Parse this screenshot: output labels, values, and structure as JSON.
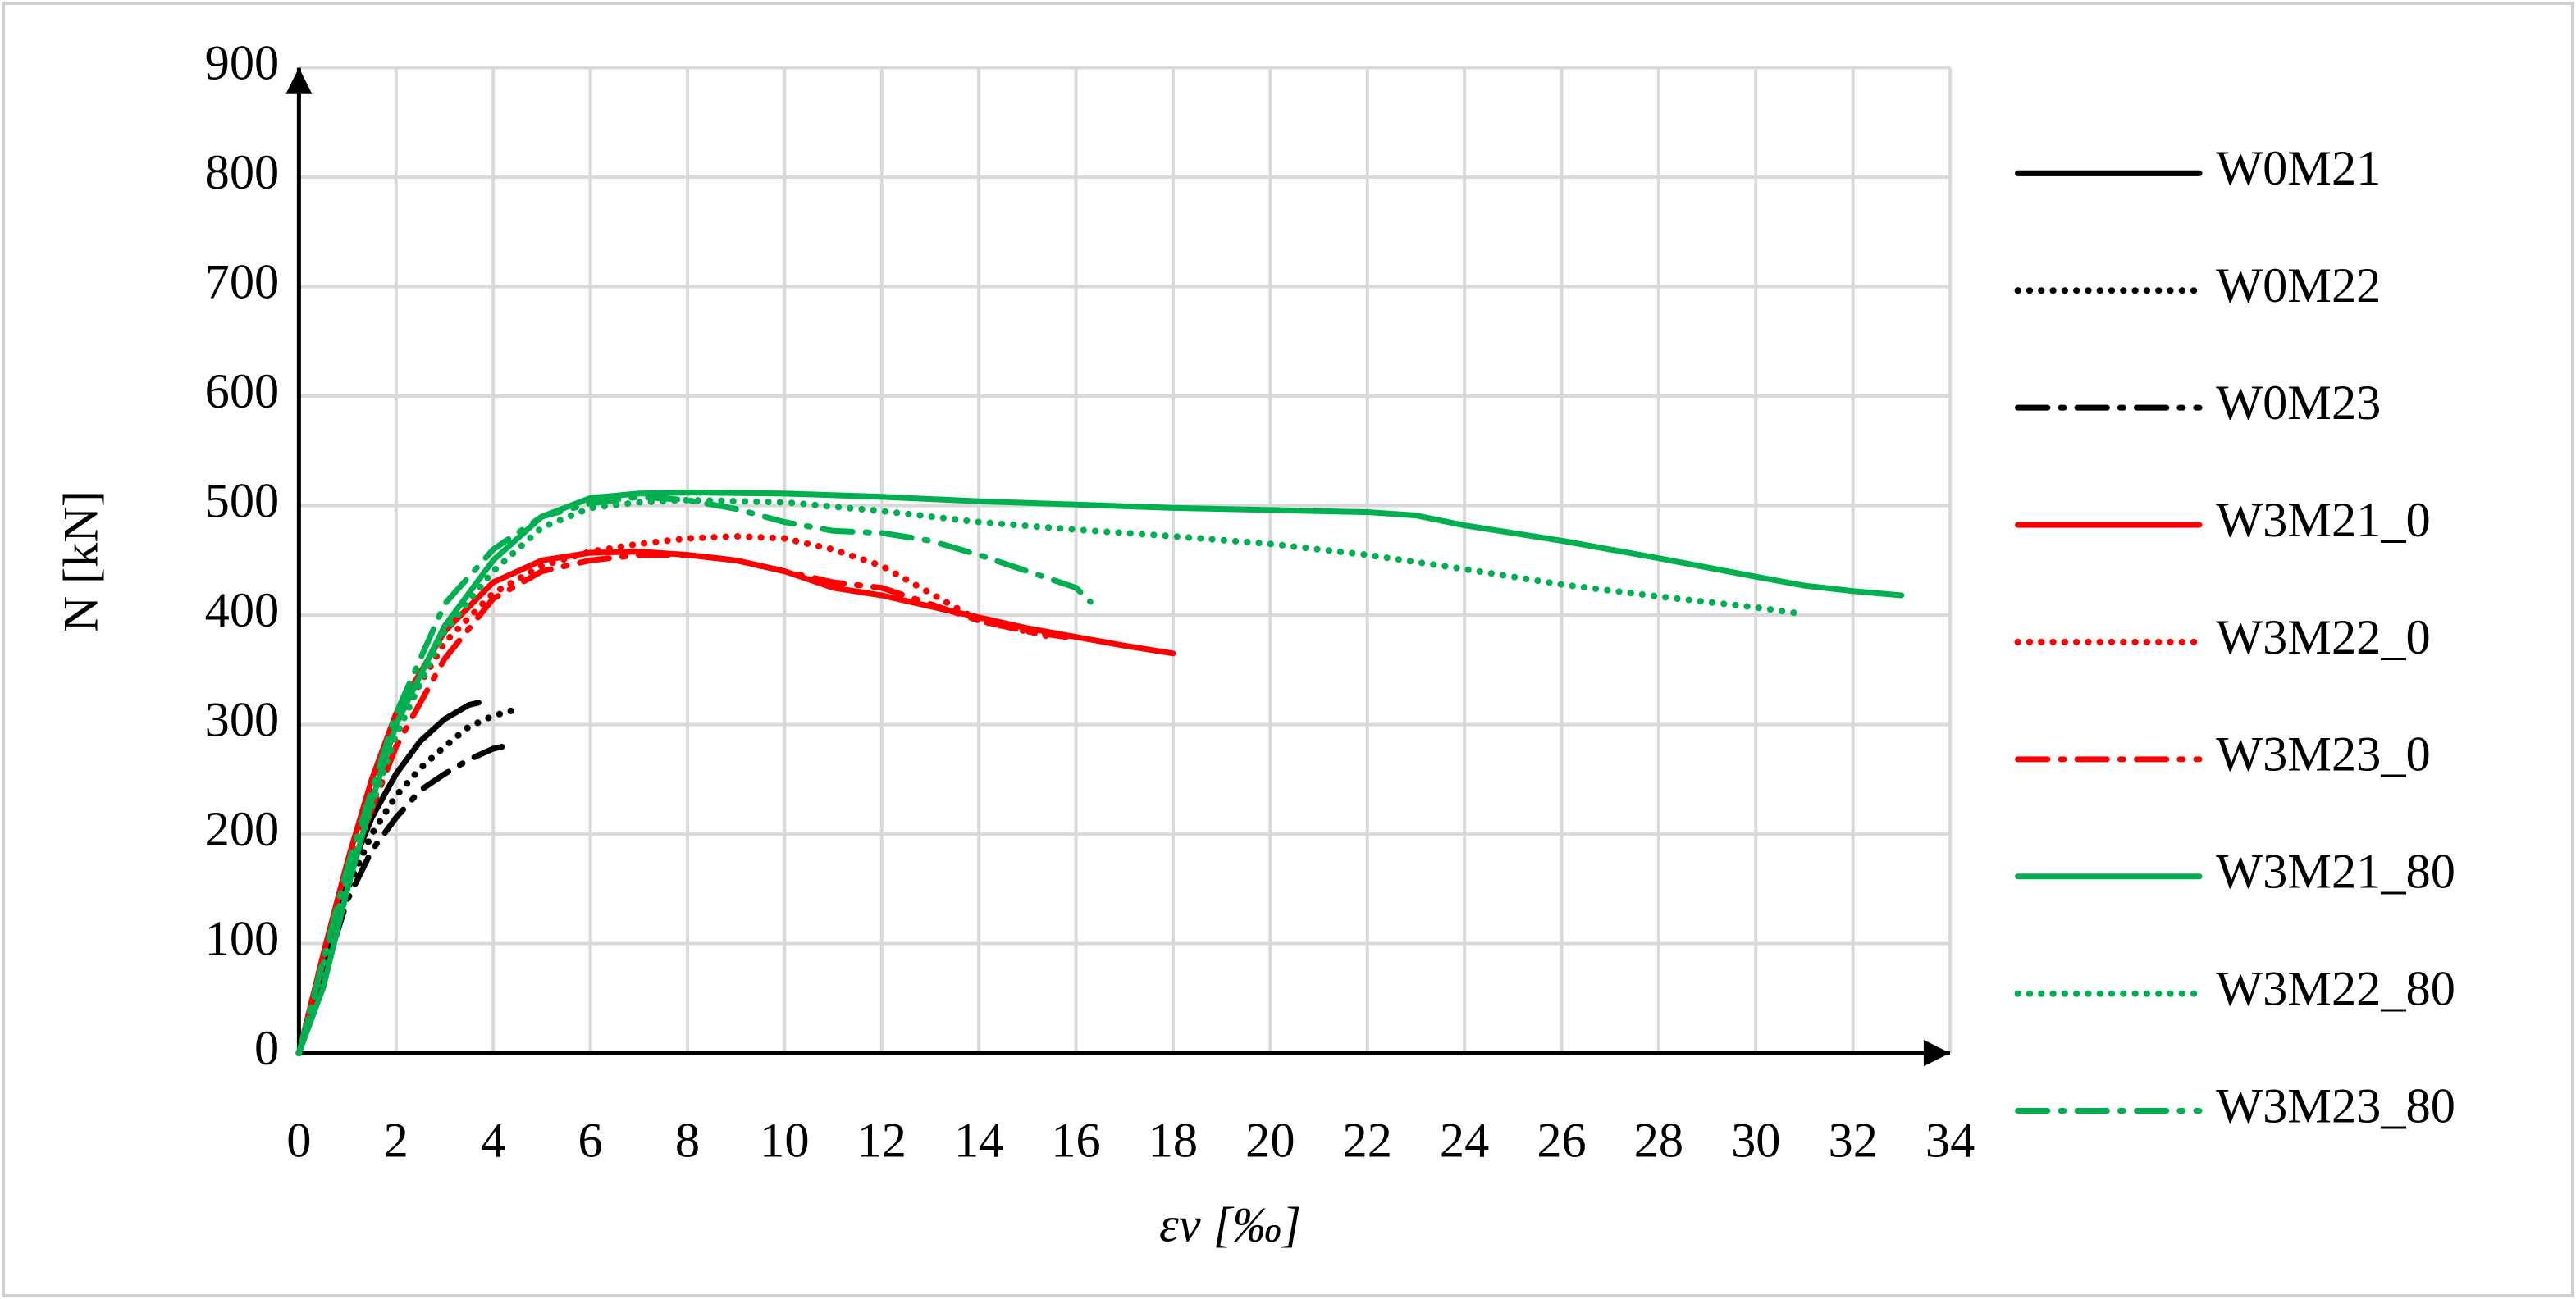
{
  "chart_data": {
    "type": "line",
    "xlabel": "εv [‰]",
    "ylabel": "N [kN]",
    "xlim": [
      0,
      34
    ],
    "xticks": [
      0,
      2,
      4,
      6,
      8,
      10,
      12,
      14,
      16,
      18,
      20,
      22,
      24,
      26,
      28,
      30,
      32,
      34
    ],
    "ylim": [
      0,
      900
    ],
    "yticks": [
      0,
      100,
      200,
      300,
      400,
      500,
      600,
      700,
      800,
      900
    ],
    "grid": true,
    "legend": "right",
    "series": [
      {
        "name": "W0M21",
        "color": "#000000",
        "dash": "solid",
        "x": [
          0,
          0.5,
          1,
          1.5,
          2,
          2.5,
          3,
          3.5,
          3.7
        ],
        "values": [
          0,
          80,
          160,
          215,
          255,
          285,
          305,
          318,
          320
        ]
      },
      {
        "name": "W0M22",
        "color": "#000000",
        "dash": "dotted",
        "x": [
          0,
          0.5,
          1,
          1.5,
          2,
          2.5,
          3,
          3.5,
          4,
          4.4
        ],
        "values": [
          0,
          75,
          150,
          200,
          235,
          260,
          280,
          298,
          308,
          313
        ]
      },
      {
        "name": "W0M23",
        "color": "#000000",
        "dash": "dashdot",
        "x": [
          0,
          0.5,
          1,
          1.5,
          2,
          2.5,
          3,
          3.5,
          4,
          4.2
        ],
        "values": [
          0,
          70,
          140,
          185,
          215,
          240,
          255,
          268,
          278,
          280
        ]
      },
      {
        "name": "W3M21_0",
        "color": "#ff0000",
        "dash": "solid",
        "x": [
          0,
          0.5,
          1,
          1.5,
          2,
          3,
          4,
          5,
          6,
          7,
          8,
          9,
          10,
          11,
          12,
          13,
          14,
          15,
          16,
          17,
          18
        ],
        "values": [
          0,
          90,
          175,
          250,
          310,
          385,
          430,
          450,
          457,
          458,
          455,
          450,
          440,
          425,
          418,
          408,
          398,
          388,
          380,
          372,
          365
        ]
      },
      {
        "name": "W3M22_0",
        "color": "#ff0000",
        "dash": "dotted",
        "x": [
          0,
          1,
          2,
          3,
          4,
          5,
          6,
          7,
          8,
          9,
          10,
          11,
          12,
          13,
          14,
          15,
          15.5
        ],
        "values": [
          0,
          170,
          300,
          375,
          420,
          445,
          458,
          465,
          470,
          472,
          470,
          460,
          445,
          420,
          395,
          385,
          380
        ]
      },
      {
        "name": "W3M23_0",
        "color": "#ff0000",
        "dash": "dashdot",
        "x": [
          0,
          1,
          2,
          3,
          4,
          5,
          6,
          7,
          8,
          9,
          10,
          11,
          12,
          13,
          14,
          15,
          15.8
        ],
        "values": [
          0,
          165,
          280,
          360,
          415,
          440,
          450,
          455,
          455,
          450,
          440,
          430,
          425,
          410,
          395,
          385,
          380
        ]
      },
      {
        "name": "W3M21_80",
        "color": "#00b050",
        "dash": "solid",
        "x": [
          0,
          0.5,
          1,
          1.5,
          2,
          3,
          4,
          5,
          6,
          7,
          8,
          10,
          12,
          14,
          16,
          18,
          20,
          22,
          23,
          24,
          26,
          28,
          30,
          31,
          32,
          33
        ],
        "values": [
          0,
          60,
          150,
          230,
          300,
          390,
          450,
          490,
          507,
          511,
          512,
          511,
          508,
          504,
          501,
          498,
          496,
          494,
          491,
          482,
          468,
          452,
          435,
          427,
          422,
          418
        ]
      },
      {
        "name": "W3M22_80",
        "color": "#00b050",
        "dash": "dotted",
        "x": [
          0,
          1,
          2,
          3,
          4,
          5,
          6,
          7,
          8,
          10,
          12,
          14,
          16,
          18,
          20,
          22,
          24,
          26,
          28,
          30,
          30.8
        ],
        "values": [
          0,
          160,
          290,
          385,
          440,
          480,
          498,
          503,
          505,
          503,
          495,
          485,
          478,
          472,
          465,
          455,
          442,
          428,
          417,
          407,
          402
        ]
      },
      {
        "name": "W3M23_80",
        "color": "#00b050",
        "dash": "dashdot",
        "x": [
          0,
          1,
          2,
          3,
          4,
          5,
          6,
          7,
          8,
          9,
          10,
          11,
          12,
          13,
          14,
          15,
          16,
          16.3
        ],
        "values": [
          0,
          170,
          310,
          410,
          460,
          490,
          502,
          508,
          505,
          497,
          485,
          477,
          475,
          468,
          455,
          440,
          425,
          412
        ]
      }
    ]
  }
}
